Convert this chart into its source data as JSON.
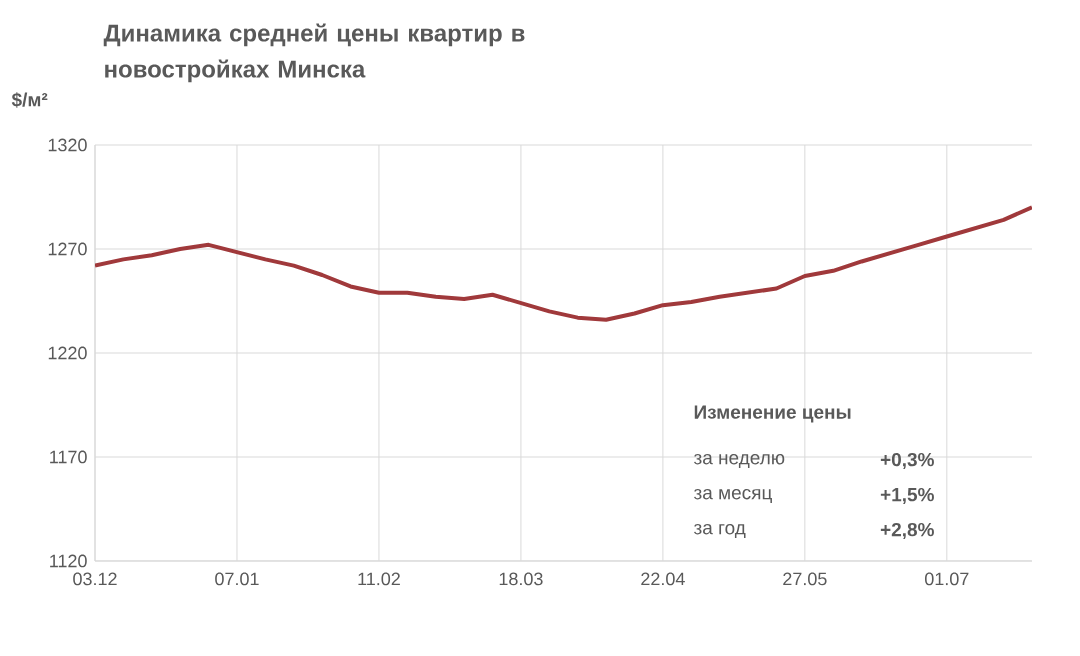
{
  "chart_data": {
    "type": "line",
    "title": "Динамика средней цены квартир в новостройках Минска",
    "ylabel": "$/м²",
    "categories": [
      "03.12",
      null,
      null,
      null,
      null,
      "07.01",
      null,
      null,
      null,
      null,
      "11.02",
      null,
      null,
      null,
      null,
      "18.03",
      null,
      null,
      null,
      null,
      "22.04",
      null,
      null,
      null,
      null,
      "27.05",
      null,
      null,
      null,
      null,
      "01.07",
      null,
      null,
      null
    ],
    "series": [
      {
        "color": "#a0393b",
        "values": [
          1262,
          1265,
          1267,
          1270,
          1272,
          1268.5,
          1265,
          1262,
          1257.5,
          1252,
          1249,
          1249,
          1247,
          1246,
          1248,
          1244,
          1240,
          1237,
          1236,
          1239,
          1243,
          1244.5,
          1247,
          1249,
          1251,
          1257,
          1259.5,
          1264,
          1268,
          1272,
          1276,
          1280,
          1284,
          1290
        ]
      }
    ],
    "ylim": [
      1120,
      1320
    ],
    "yticks": [
      1120,
      1170,
      1220,
      1270,
      1320
    ],
    "grid": true,
    "marker": "none",
    "line_style": "solid",
    "annotations": [
      "Изменение цены",
      "за неделю",
      "+0,3%",
      "за месяц",
      "+1,5%",
      "за год",
      "+2,8%"
    ]
  }
}
